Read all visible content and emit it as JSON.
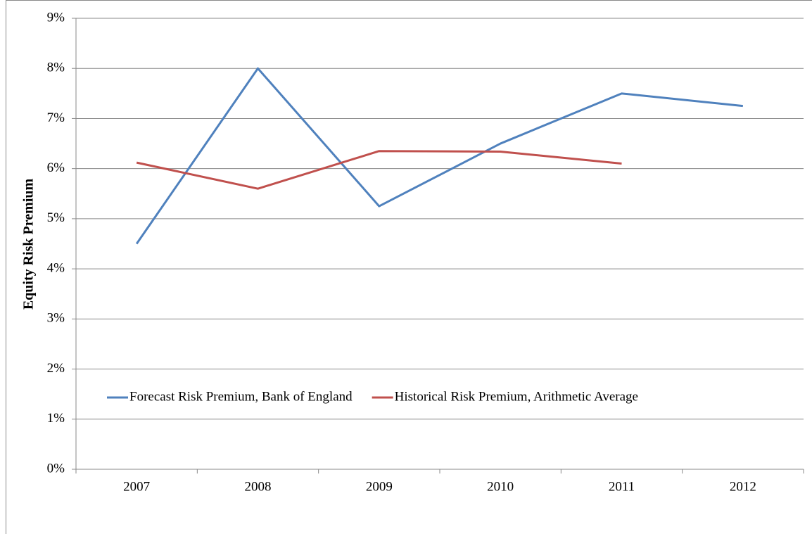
{
  "chart_data": {
    "type": "line",
    "y_label": "Equity Risk Premium",
    "categories": [
      "2007",
      "2008",
      "2009",
      "2010",
      "2011",
      "2012"
    ],
    "series": [
      {
        "name": "Forecast Risk Premium, Bank of England",
        "color": "#4f81bd",
        "values": [
          4.5,
          8,
          5.25,
          6.5,
          7.5,
          7.25
        ]
      },
      {
        "name": "Historical Risk Premium, Arithmetic Average",
        "color": "#c0504d",
        "values": [
          6.12,
          5.6,
          6.35,
          6.34,
          6.1,
          null
        ]
      }
    ],
    "ylim": [
      0,
      9
    ],
    "yticks": [
      {
        "value": 0,
        "label": "0%"
      },
      {
        "value": 1,
        "label": "1%"
      },
      {
        "value": 2,
        "label": "2%"
      },
      {
        "value": 3,
        "label": "3%"
      },
      {
        "value": 4,
        "label": "4%"
      },
      {
        "value": 5,
        "label": "5%"
      },
      {
        "value": 6,
        "label": "6%"
      },
      {
        "value": 7,
        "label": "7%"
      },
      {
        "value": 8,
        "label": "8%"
      },
      {
        "value": 9,
        "label": "9%"
      }
    ],
    "grid": true,
    "legend": "inside-bottom"
  }
}
